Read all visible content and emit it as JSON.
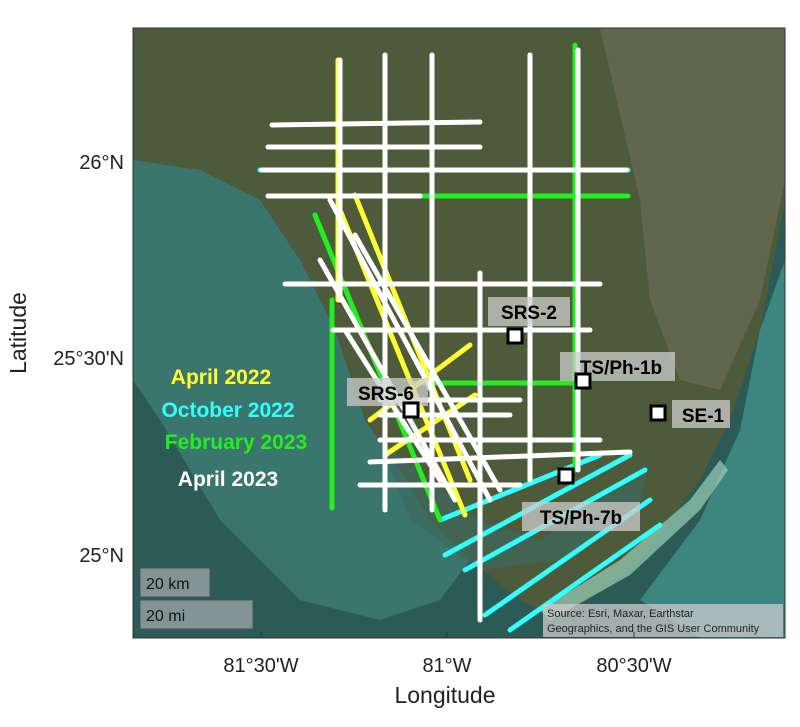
{
  "map": {
    "x_axis": {
      "label": "Longitude",
      "ticks": [
        "81°30'W",
        "81°W",
        "80°30'W"
      ]
    },
    "y_axis": {
      "label": "Latitude",
      "ticks": [
        "26°N",
        "25°30'N",
        "25°N"
      ]
    },
    "legend": [
      {
        "label": "April 2022",
        "color": "#ffff33"
      },
      {
        "label": "October 2022",
        "color": "#33ffff"
      },
      {
        "label": "February 2023",
        "color": "#22ee22"
      },
      {
        "label": "April 2023",
        "color": "#ffffff"
      }
    ],
    "stations": [
      {
        "label": "SRS-2"
      },
      {
        "label": "TS/Ph-1b"
      },
      {
        "label": "SRS-6"
      },
      {
        "label": "SE-1"
      },
      {
        "label": "TS/Ph-7b"
      }
    ],
    "scale_bars": [
      "20 km",
      "20 mi"
    ],
    "attribution": [
      "Source: Esri, Maxar, Earthstar",
      "Geographics, and the GIS User Community"
    ]
  }
}
